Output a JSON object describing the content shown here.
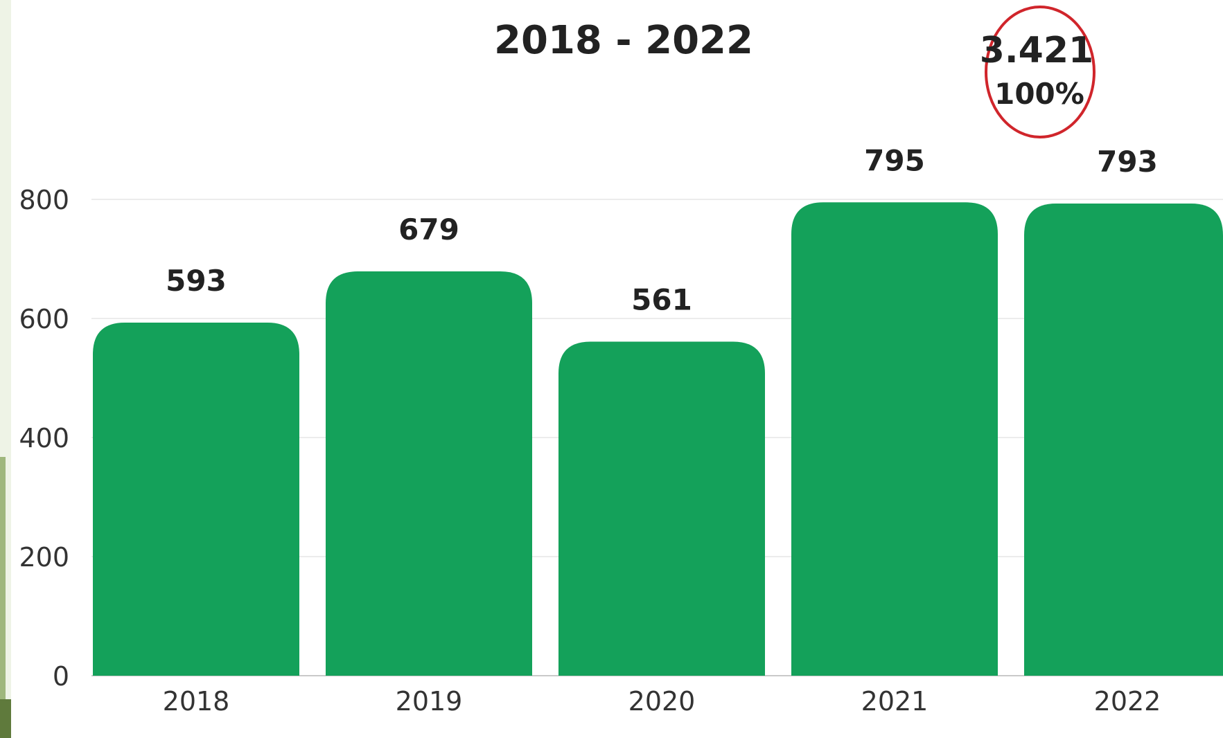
{
  "chart_data": {
    "type": "bar",
    "title": "2018 - 2022",
    "categories": [
      "2018",
      "2019",
      "2020",
      "2021",
      "2022"
    ],
    "values": [
      593,
      679,
      561,
      795,
      793
    ],
    "data_labels": [
      "593",
      "679",
      "561",
      "795",
      "793"
    ],
    "y_ticks": [
      0,
      200,
      400,
      600,
      800
    ],
    "ylim": [
      0,
      800
    ],
    "xlabel": "",
    "ylabel": "",
    "grid": true,
    "bar_color": "#14a15a",
    "annotation": {
      "total": "3.421",
      "percent": "100%",
      "circle_color": "#d0252b",
      "placement": "top-right"
    }
  }
}
